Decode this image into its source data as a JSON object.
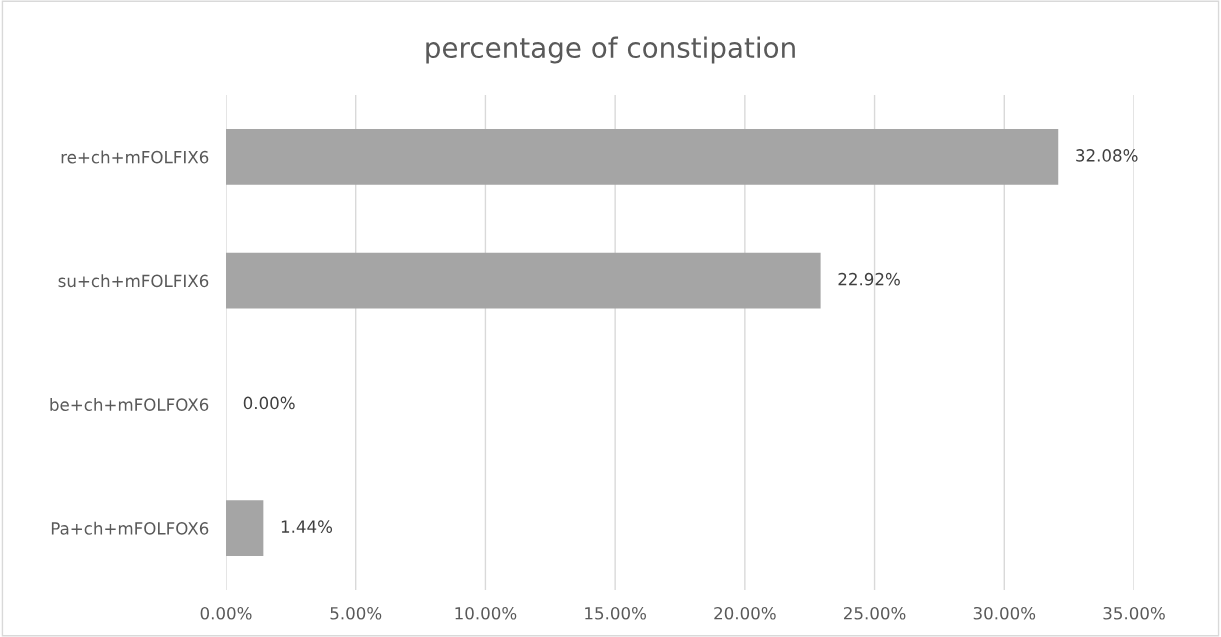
{
  "chart_data": {
    "type": "bar",
    "orientation": "horizontal",
    "title": "percentage of constipation",
    "categories": [
      "re+ch+mFOLFIX6",
      "su+ch+mFOLFIX6",
      "be+ch+mFOLFOX6",
      "Pa+ch+mFOLFOX6"
    ],
    "values": [
      32.08,
      22.92,
      0,
      1.44
    ],
    "value_labels": [
      "32.08%",
      "22.92%",
      "0.00%",
      "1.44%"
    ],
    "color": "#a5a5a5",
    "xlim": [
      0,
      35
    ],
    "xticks": [
      {
        "value": 0,
        "label": "0.00%"
      },
      {
        "value": 5,
        "label": "5.00%"
      },
      {
        "value": 10,
        "label": "10.00%"
      },
      {
        "value": 15,
        "label": "15.00%"
      },
      {
        "value": 20,
        "label": "20.00%"
      },
      {
        "value": 25,
        "label": "25.00%"
      },
      {
        "value": 30,
        "label": "30.00%"
      },
      {
        "value": 35,
        "label": "35.00%"
      }
    ],
    "grid": "x"
  }
}
